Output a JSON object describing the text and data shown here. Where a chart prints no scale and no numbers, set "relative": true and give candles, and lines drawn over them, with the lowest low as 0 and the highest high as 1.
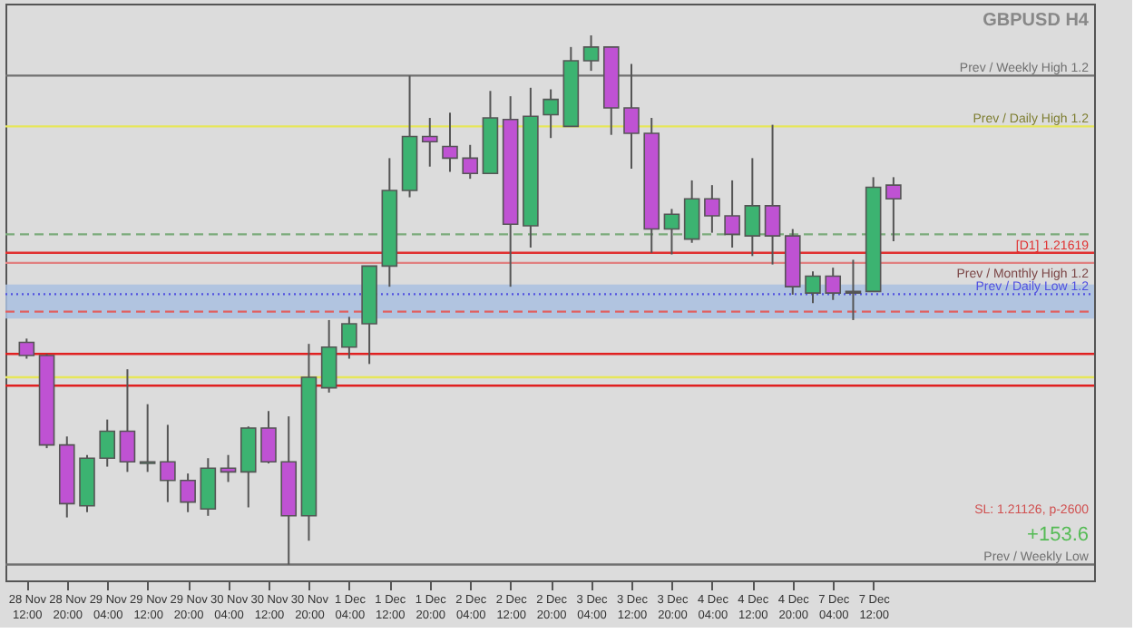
{
  "chart_data": {
    "type": "candlestick",
    "title": "GBPUSD H4",
    "relative": true,
    "categories": [
      "28 Nov 12:00",
      null,
      "28 Nov 20:00",
      null,
      "29 Nov 04:00",
      null,
      "29 Nov 12:00",
      null,
      "29 Nov 20:00",
      null,
      "30 Nov 04:00",
      null,
      "30 Nov 12:00",
      null,
      "30 Nov 20:00",
      null,
      "1 Dec 04:00",
      null,
      "1 Dec 12:00",
      null,
      "1 Dec 20:00",
      null,
      "2 Dec 04:00",
      null,
      "2 Dec 12:00",
      null,
      "2 Dec 20:00",
      null,
      "3 Dec 04:00",
      null,
      "3 Dec 12:00",
      null,
      "3 Dec 20:00",
      null,
      "4 Dec 04:00",
      null,
      "4 Dec 12:00",
      null,
      "4 Dec 20:00",
      null,
      "7 Dec 04:00",
      null,
      "7 Dec 12:00",
      null
    ],
    "ohlc": [
      [
        0.42,
        0.427,
        0.389,
        0.395
      ],
      [
        0.395,
        0.398,
        0.22,
        0.226
      ],
      [
        0.226,
        0.242,
        0.089,
        0.115
      ],
      [
        0.111,
        0.207,
        0.099,
        0.201
      ],
      [
        0.201,
        0.274,
        0.185,
        0.252
      ],
      [
        0.252,
        0.369,
        0.175,
        0.194
      ],
      [
        0.191,
        0.303,
        0.175,
        0.194
      ],
      [
        0.194,
        0.264,
        0.118,
        0.159
      ],
      [
        0.159,
        0.172,
        0.099,
        0.118
      ],
      [
        0.105,
        0.201,
        0.092,
        0.182
      ],
      [
        0.182,
        0.207,
        0.156,
        0.175
      ],
      [
        0.175,
        0.261,
        0.108,
        0.258
      ],
      [
        0.258,
        0.29,
        0.191,
        0.194
      ],
      [
        0.194,
        0.28,
        0.0,
        0.092
      ],
      [
        0.092,
        0.417,
        0.045,
        0.354
      ],
      [
        0.334,
        0.462,
        0.325,
        0.411
      ],
      [
        0.411,
        0.468,
        0.389,
        0.455
      ],
      [
        0.455,
        0.564,
        0.379,
        0.564
      ],
      [
        0.564,
        0.768,
        0.525,
        0.707
      ],
      [
        0.707,
        0.924,
        0.694,
        0.809
      ],
      [
        0.809,
        0.844,
        0.752,
        0.799
      ],
      [
        0.79,
        0.854,
        0.742,
        0.768
      ],
      [
        0.768,
        0.793,
        0.729,
        0.739
      ],
      [
        0.739,
        0.895,
        0.739,
        0.844
      ],
      [
        0.841,
        0.885,
        0.525,
        0.643
      ],
      [
        0.64,
        0.901,
        0.599,
        0.847
      ],
      [
        0.85,
        0.898,
        0.806,
        0.879
      ],
      [
        0.828,
        0.978,
        0.828,
        0.952
      ],
      [
        0.952,
        1.0,
        0.933,
        0.978
      ],
      [
        0.978,
        0.978,
        0.812,
        0.863
      ],
      [
        0.863,
        0.946,
        0.748,
        0.815
      ],
      [
        0.815,
        0.844,
        0.589,
        0.634
      ],
      [
        0.634,
        0.672,
        0.586,
        0.662
      ],
      [
        0.615,
        0.726,
        0.608,
        0.691
      ],
      [
        0.691,
        0.717,
        0.627,
        0.659
      ],
      [
        0.659,
        0.726,
        0.599,
        0.624
      ],
      [
        0.621,
        0.768,
        0.583,
        0.678
      ],
      [
        0.678,
        0.831,
        0.567,
        0.621
      ],
      [
        0.621,
        0.634,
        0.51,
        0.525
      ],
      [
        0.513,
        0.554,
        0.494,
        0.545
      ],
      [
        0.545,
        0.561,
        0.5,
        0.513
      ],
      [
        0.513,
        0.576,
        0.462,
        0.516
      ],
      [
        0.516,
        0.732,
        0.516,
        0.713
      ],
      [
        0.717,
        0.732,
        0.611,
        0.691
      ]
    ],
    "colors": [
      "#bf52d3",
      "#bf52d3",
      "#bf52d3",
      "#3cb371",
      "#3cb371",
      "#bf52d3",
      "#3cb371",
      "#bf52d3",
      "#bf52d3",
      "#3cb371",
      "#bf52d3",
      "#3cb371",
      "#bf52d3",
      "#bf52d3",
      "#3cb371",
      "#3cb371",
      "#3cb371",
      "#3cb371",
      "#3cb371",
      "#3cb371",
      "#bf52d3",
      "#bf52d3",
      "#bf52d3",
      "#3cb371",
      "#bf52d3",
      "#3cb371",
      "#3cb371",
      "#3cb371",
      "#3cb371",
      "#bf52d3",
      "#bf52d3",
      "#bf52d3",
      "#3cb371",
      "#3cb371",
      "#bf52d3",
      "#bf52d3",
      "#3cb371",
      "#bf52d3",
      "#bf52d3",
      "#3cb371",
      "#bf52d3",
      "#3cb371",
      "#3cb371",
      "#bf52d3"
    ],
    "ref_lines": [
      {
        "axis": "y",
        "value": 0.924,
        "label": "Prev / Weekly High 1.2",
        "color": "#707070"
      },
      {
        "axis": "y",
        "value": 0.828,
        "label": "Prev / Daily High 1.2",
        "color": "#e6e65a"
      },
      {
        "axis": "y",
        "value": 0.624,
        "color": "#7aaa7a",
        "line_style": "dashed"
      },
      {
        "axis": "y",
        "value": 0.589,
        "label": "[D1] 1.21619",
        "color": "#e03030"
      },
      {
        "axis": "y",
        "value": 0.57,
        "label": "Prev / Monthly High 1.2",
        "color": "#e08080"
      },
      {
        "axis": "y",
        "value": 0.511,
        "label": "Prev / Daily Low 1.2",
        "color": "#5050e0",
        "line_style": "dotted"
      },
      {
        "axis": "y",
        "value": 0.478,
        "color": "#e06060",
        "line_style": "dashed"
      },
      {
        "axis": "y",
        "value": 0.398,
        "color": "#e02020"
      },
      {
        "axis": "y",
        "value": 0.354,
        "color": "#e6e65a"
      },
      {
        "axis": "y",
        "value": 0.338,
        "color": "#e02020"
      },
      {
        "axis": "y",
        "value": 0.0,
        "label": "Prev / Weekly Low",
        "color": "#707070"
      }
    ],
    "bands": [
      {
        "axis": "y",
        "from": 0.465,
        "to": 0.529,
        "color": "#a9c0e0"
      }
    ],
    "annotations": [
      "+153.6",
      "SL: 1.21126, p-2600"
    ]
  }
}
